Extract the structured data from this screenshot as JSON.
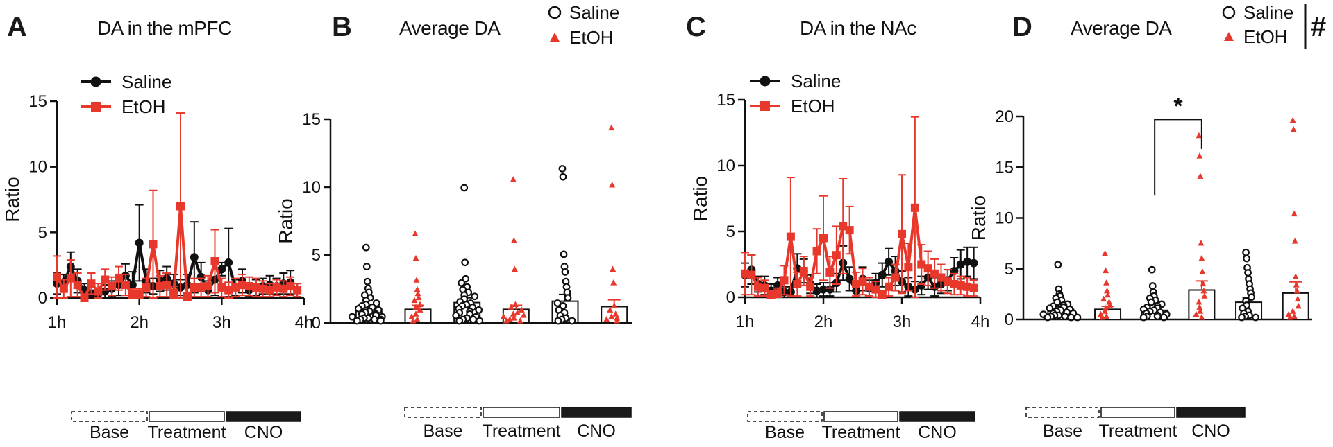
{
  "colors": {
    "saline": "#111111",
    "etoh": "#e8382c"
  },
  "phases": {
    "base": "Base",
    "treatment": "Treatment",
    "cno": "CNO"
  },
  "chart_data": [
    {
      "id": "A",
      "type": "line",
      "letter": "A",
      "title": "DA in the mPFC",
      "ylabel": "Ratio",
      "ylim": [
        0,
        15
      ],
      "yticks": [
        "0",
        "5",
        "10",
        "15"
      ],
      "xtick_labels": [
        "1h",
        "2h",
        "3h",
        "4h"
      ],
      "legend": [
        "Saline",
        "EtOH"
      ],
      "x": [
        1.0,
        1.083,
        1.167,
        1.25,
        1.333,
        1.417,
        1.5,
        1.583,
        1.667,
        1.75,
        1.833,
        1.917,
        2.0,
        2.083,
        2.167,
        2.25,
        2.333,
        2.417,
        2.5,
        2.583,
        2.667,
        2.75,
        2.833,
        2.917,
        3.0,
        3.083,
        3.167,
        3.25,
        3.333,
        3.417,
        3.5,
        3.583,
        3.667,
        3.75,
        3.833,
        3.917
      ],
      "series": [
        {
          "name": "Saline",
          "values": [
            1.1,
            1.2,
            2.4,
            1.3,
            0.6,
            0.3,
            0.3,
            0.5,
            0.7,
            1.0,
            1.7,
            1.0,
            4.2,
            1.3,
            0.9,
            1.3,
            1.5,
            1.1,
            0.8,
            1.0,
            3.1,
            1.6,
            0.6,
            1.4,
            2.2,
            2.7,
            0.8,
            1.3,
            0.6,
            0.8,
            0.9,
            1.0,
            0.9,
            1.1,
            1.2,
            0.6
          ],
          "err": [
            0.8,
            0.6,
            1.1,
            0.9,
            0.5,
            0.3,
            0.4,
            0.5,
            0.6,
            0.8,
            0.9,
            1.0,
            2.9,
            0.9,
            0.6,
            0.8,
            0.9,
            0.7,
            0.6,
            0.8,
            2.7,
            1.1,
            0.7,
            1.2,
            0.5,
            2.6,
            0.6,
            0.9,
            0.5,
            0.6,
            0.6,
            0.7,
            0.6,
            0.8,
            0.9,
            0.5
          ]
        },
        {
          "name": "EtOH",
          "values": [
            1.6,
            0.7,
            1.5,
            1.0,
            0.0,
            1.1,
            0.5,
            1.4,
            0.9,
            1.5,
            1.0,
            0.3,
            0.3,
            0.8,
            4.1,
            0.9,
            1.0,
            0.4,
            7.0,
            0.1,
            0.8,
            0.8,
            0.9,
            2.8,
            0.8,
            0.6,
            0.8,
            1.0,
            0.9,
            0.8,
            0.7,
            0.6,
            0.8,
            0.7,
            0.9,
            0.6
          ],
          "err": [
            1.6,
            0.7,
            1.4,
            0.9,
            0.3,
            0.8,
            0.6,
            0.8,
            0.7,
            0.9,
            0.8,
            0.4,
            0.4,
            0.7,
            4.1,
            0.8,
            0.9,
            0.5,
            7.1,
            0.3,
            0.7,
            0.7,
            0.8,
            2.4,
            0.7,
            0.6,
            0.7,
            0.8,
            0.7,
            0.7,
            0.6,
            0.5,
            0.6,
            0.6,
            0.7,
            0.5
          ]
        }
      ]
    },
    {
      "id": "B",
      "type": "scatter",
      "letter": "B",
      "title": "Average DA",
      "ylabel": "Ratio",
      "ylim": [
        0,
        15
      ],
      "yticks": [
        "0",
        "5",
        "10",
        "15"
      ],
      "legend": [
        "Saline",
        "EtOH"
      ],
      "groups": [
        {
          "series": "Saline",
          "phase": "Base",
          "mean": 1.0,
          "sem": 0.25,
          "values": [
            5.4,
            4.0,
            2.9,
            2.4,
            2.1,
            1.9,
            1.7,
            1.5,
            1.3,
            1.2,
            1.1,
            1.0,
            0.9,
            0.8,
            0.7,
            0.6,
            0.5,
            0.5,
            0.4,
            0.3,
            0.3,
            0.2,
            0.2,
            0.1,
            0.1,
            0.1,
            0.0,
            0.0
          ]
        },
        {
          "series": "EtOH",
          "phase": "Base",
          "mean": 1.0,
          "sem": 0.3,
          "values": [
            6.4,
            4.6,
            3.0,
            2.3,
            2.0,
            1.7,
            1.5,
            1.2,
            1.0,
            0.8,
            0.5,
            0.3,
            0.1,
            0.0
          ]
        },
        {
          "series": "Saline",
          "phase": "Treatment",
          "mean": 1.5,
          "sem": 0.35,
          "values": [
            9.8,
            4.3,
            3.1,
            2.8,
            2.5,
            2.3,
            2.1,
            1.9,
            1.8,
            1.6,
            1.4,
            1.3,
            1.2,
            1.1,
            1.0,
            0.9,
            0.8,
            0.7,
            0.6,
            0.5,
            0.4,
            0.3,
            0.2,
            0.1,
            0.1,
            0.0,
            0.0
          ]
        },
        {
          "series": "EtOH",
          "phase": "Treatment",
          "mean": 1.0,
          "sem": 0.3,
          "values": [
            10.4,
            5.9,
            3.8,
            1.2,
            1.0,
            0.8,
            0.6,
            0.5,
            0.4,
            0.3,
            0.2,
            0.1,
            0.0,
            0.0
          ]
        },
        {
          "series": "Saline",
          "phase": "CNO",
          "mean": 1.6,
          "sem": 0.5,
          "values": [
            11.2,
            10.6,
            4.9,
            4.0,
            3.6,
            2.9,
            2.5,
            2.1,
            1.7,
            1.3,
            1.1,
            0.8,
            0.6,
            0.4,
            0.2,
            0.1,
            0.0,
            0.0
          ]
        },
        {
          "series": "EtOH",
          "phase": "CNO",
          "mean": 1.2,
          "sem": 0.5,
          "values": [
            14.2,
            10.0,
            3.8,
            2.8,
            1.1,
            0.8,
            0.5,
            0.3,
            0.2,
            0.1,
            0.0
          ]
        }
      ]
    },
    {
      "id": "C",
      "type": "line",
      "letter": "C",
      "title": "DA in the NAc",
      "ylabel": "Ratio",
      "ylim": [
        0,
        15
      ],
      "yticks": [
        "0",
        "5",
        "10",
        "15"
      ],
      "xtick_labels": [
        "1h",
        "2h",
        "3h",
        "4h"
      ],
      "legend": [
        "Saline",
        "EtOH"
      ],
      "x": [
        1.0,
        1.083,
        1.167,
        1.25,
        1.333,
        1.417,
        1.5,
        1.583,
        1.667,
        1.75,
        1.833,
        1.917,
        2.0,
        2.083,
        2.167,
        2.25,
        2.333,
        2.417,
        2.5,
        2.583,
        2.667,
        2.75,
        2.833,
        2.917,
        3.0,
        3.083,
        3.167,
        3.25,
        3.333,
        3.417,
        3.5,
        3.583,
        3.667,
        3.75,
        3.833,
        3.917
      ],
      "series": [
        {
          "name": "Saline",
          "values": [
            1.7,
            2.1,
            1.0,
            0.9,
            0.5,
            0.9,
            0.4,
            0.4,
            2.2,
            2.0,
            1.0,
            0.5,
            0.6,
            0.6,
            1.1,
            2.6,
            1.4,
            0.5,
            1.4,
            0.7,
            1.1,
            1.7,
            2.7,
            2.0,
            1.2,
            0.8,
            0.6,
            0.9,
            1.5,
            0.8,
            1.0,
            1.3,
            2.0,
            2.5,
            2.7,
            2.6
          ],
          "err": [
            0.9,
            1.1,
            0.6,
            0.7,
            0.5,
            0.6,
            0.4,
            0.4,
            1.1,
            0.9,
            0.7,
            0.5,
            0.5,
            0.5,
            0.7,
            1.3,
            0.9,
            0.5,
            0.9,
            0.6,
            0.7,
            0.9,
            1.0,
            1.1,
            0.8,
            0.7,
            0.6,
            0.7,
            0.9,
            0.7,
            0.7,
            0.8,
            1.0,
            1.1,
            1.1,
            1.2
          ]
        },
        {
          "name": "EtOH",
          "values": [
            1.8,
            1.7,
            0.8,
            0.7,
            0.2,
            0.3,
            1.3,
            4.6,
            1.0,
            2.0,
            0.8,
            3.5,
            4.5,
            1.9,
            3.2,
            5.4,
            5.1,
            1.0,
            1.2,
            0.8,
            0.6,
            0.2,
            0.8,
            1.5,
            4.8,
            2.3,
            6.8,
            2.5,
            2.2,
            1.8,
            1.5,
            1.2,
            1.0,
            0.9,
            0.8,
            0.7
          ],
          "err": [
            1.6,
            1.5,
            0.7,
            0.6,
            0.3,
            0.4,
            1.1,
            4.5,
            0.9,
            1.1,
            0.7,
            1.7,
            3.2,
            1.2,
            2.2,
            3.6,
            1.8,
            0.9,
            1.0,
            0.7,
            0.6,
            0.3,
            0.7,
            1.0,
            4.5,
            1.8,
            6.9,
            1.5,
            1.3,
            1.1,
            1.0,
            0.9,
            0.8,
            0.7,
            0.7,
            0.6
          ]
        }
      ]
    },
    {
      "id": "D",
      "type": "scatter",
      "letter": "D",
      "title": "Average DA",
      "ylabel": "Ratio",
      "ylim": [
        0,
        20
      ],
      "yticks": [
        "0",
        "5",
        "10",
        "15",
        "20"
      ],
      "legend": [
        "Saline",
        "EtOH"
      ],
      "legend_mark": "#",
      "significance": {
        "label": "*",
        "between": [
          2,
          3
        ]
      },
      "groups": [
        {
          "series": "Saline",
          "phase": "Base",
          "mean": 1.0,
          "sem": 0.25,
          "values": [
            5.2,
            2.8,
            2.3,
            2.1,
            1.9,
            1.7,
            1.5,
            1.3,
            1.2,
            1.1,
            1.0,
            0.9,
            0.8,
            0.7,
            0.6,
            0.5,
            0.4,
            0.4,
            0.3,
            0.2,
            0.2,
            0.1,
            0.1,
            0.0,
            0.0,
            0.0
          ]
        },
        {
          "series": "EtOH",
          "phase": "Base",
          "mean": 1.0,
          "sem": 0.3,
          "values": [
            6.3,
            4.6,
            3.4,
            2.6,
            2.2,
            1.8,
            1.5,
            1.2,
            0.9,
            0.6,
            0.3,
            0.1,
            0.0
          ]
        },
        {
          "series": "Saline",
          "phase": "Treatment",
          "mean": 0.9,
          "sem": 0.2,
          "values": [
            4.7,
            3.1,
            2.5,
            2.1,
            1.9,
            1.7,
            1.5,
            1.3,
            1.1,
            1.0,
            0.9,
            0.8,
            0.7,
            0.6,
            0.5,
            0.4,
            0.3,
            0.2,
            0.1,
            0.1,
            0.0,
            0.0
          ]
        },
        {
          "series": "EtOH",
          "phase": "Treatment",
          "mean": 2.9,
          "sem": 0.9,
          "values": [
            17.9,
            15.9,
            13.9,
            7.3,
            5.8,
            4.5,
            3.3,
            2.6,
            2.1,
            1.5,
            1.0,
            0.6,
            0.3,
            0.0
          ]
        },
        {
          "series": "Saline",
          "phase": "CNO",
          "mean": 1.7,
          "sem": 0.45,
          "values": [
            6.4,
            5.8,
            4.9,
            4.4,
            3.8,
            3.3,
            2.8,
            2.4,
            2.0,
            1.6,
            1.2,
            0.9,
            0.6,
            0.4,
            0.2,
            0.1,
            0.0,
            0.0
          ]
        },
        {
          "series": "EtOH",
          "phase": "CNO",
          "mean": 2.6,
          "sem": 1.1,
          "values": [
            19.4,
            18.5,
            10.2,
            7.5,
            4.0,
            3.2,
            2.6,
            1.8,
            1.1,
            0.6,
            0.3,
            0.1,
            0.0
          ]
        }
      ]
    }
  ]
}
